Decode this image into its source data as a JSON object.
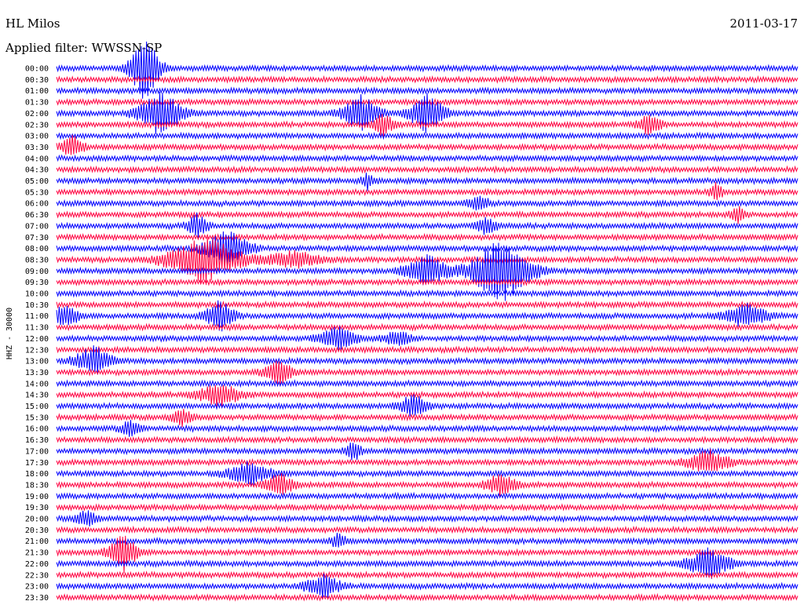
{
  "header": {
    "station": "HL Milos",
    "date": "2011-03-17",
    "filter": "Applied filter: WWSSN-SP"
  },
  "chart_data": {
    "type": "line",
    "title": "",
    "ylabel": "HHZ - 30000",
    "xlabel": "",
    "grid": false,
    "colors": [
      "#0000ff",
      "#ff0040"
    ],
    "rows": [
      "00:00",
      "00:30",
      "01:00",
      "01:30",
      "02:00",
      "02:30",
      "03:00",
      "03:30",
      "04:00",
      "04:30",
      "05:00",
      "05:30",
      "06:00",
      "06:30",
      "07:00",
      "07:30",
      "08:00",
      "08:30",
      "09:00",
      "09:30",
      "10:00",
      "10:30",
      "11:00",
      "11:30",
      "12:00",
      "12:30",
      "13:00",
      "13:30",
      "14:00",
      "14:30",
      "15:00",
      "15:30",
      "16:00",
      "16:30",
      "17:00",
      "17:30",
      "18:00",
      "18:30",
      "19:00",
      "19:30",
      "20:00",
      "20:30",
      "21:00",
      "21:30",
      "22:00",
      "22:30",
      "23:00",
      "23:30"
    ],
    "events": [
      {
        "row": 0,
        "x": 0.12,
        "amp": 9,
        "dur": 0.04
      },
      {
        "row": 4,
        "x": 0.14,
        "amp": 6,
        "dur": 0.06
      },
      {
        "row": 4,
        "x": 0.41,
        "amp": 5,
        "dur": 0.05
      },
      {
        "row": 4,
        "x": 0.5,
        "amp": 5,
        "dur": 0.05
      },
      {
        "row": 5,
        "x": 0.44,
        "amp": 3,
        "dur": 0.03
      },
      {
        "row": 5,
        "x": 0.8,
        "amp": 3,
        "dur": 0.03
      },
      {
        "row": 7,
        "x": 0.02,
        "amp": 3,
        "dur": 0.03
      },
      {
        "row": 10,
        "x": 0.42,
        "amp": 2,
        "dur": 0.02
      },
      {
        "row": 11,
        "x": 0.89,
        "amp": 2,
        "dur": 0.02
      },
      {
        "row": 12,
        "x": 0.57,
        "amp": 2,
        "dur": 0.03
      },
      {
        "row": 13,
        "x": 0.92,
        "amp": 2,
        "dur": 0.02
      },
      {
        "row": 14,
        "x": 0.19,
        "amp": 3,
        "dur": 0.03
      },
      {
        "row": 14,
        "x": 0.58,
        "amp": 2,
        "dur": 0.03
      },
      {
        "row": 16,
        "x": 0.23,
        "amp": 5,
        "dur": 0.06
      },
      {
        "row": 17,
        "x": 0.2,
        "amp": 6,
        "dur": 0.1
      },
      {
        "row": 17,
        "x": 0.32,
        "amp": 2,
        "dur": 0.08
      },
      {
        "row": 18,
        "x": 0.5,
        "amp": 4,
        "dur": 0.06
      },
      {
        "row": 18,
        "x": 0.6,
        "amp": 9,
        "dur": 0.08
      },
      {
        "row": 22,
        "x": 0.01,
        "amp": 3,
        "dur": 0.04
      },
      {
        "row": 22,
        "x": 0.22,
        "amp": 4,
        "dur": 0.04
      },
      {
        "row": 22,
        "x": 0.93,
        "amp": 3,
        "dur": 0.06
      },
      {
        "row": 24,
        "x": 0.38,
        "amp": 3,
        "dur": 0.05
      },
      {
        "row": 24,
        "x": 0.46,
        "amp": 2,
        "dur": 0.04
      },
      {
        "row": 26,
        "x": 0.05,
        "amp": 4,
        "dur": 0.05
      },
      {
        "row": 27,
        "x": 0.3,
        "amp": 3,
        "dur": 0.04
      },
      {
        "row": 29,
        "x": 0.22,
        "amp": 3,
        "dur": 0.06
      },
      {
        "row": 30,
        "x": 0.48,
        "amp": 3,
        "dur": 0.04
      },
      {
        "row": 31,
        "x": 0.17,
        "amp": 2,
        "dur": 0.03
      },
      {
        "row": 32,
        "x": 0.1,
        "amp": 2,
        "dur": 0.03
      },
      {
        "row": 34,
        "x": 0.4,
        "amp": 3,
        "dur": 0.02
      },
      {
        "row": 35,
        "x": 0.88,
        "amp": 3,
        "dur": 0.06
      },
      {
        "row": 36,
        "x": 0.26,
        "amp": 3,
        "dur": 0.06
      },
      {
        "row": 37,
        "x": 0.3,
        "amp": 3,
        "dur": 0.04
      },
      {
        "row": 37,
        "x": 0.6,
        "amp": 3,
        "dur": 0.04
      },
      {
        "row": 40,
        "x": 0.04,
        "amp": 2,
        "dur": 0.03
      },
      {
        "row": 42,
        "x": 0.38,
        "amp": 2,
        "dur": 0.02
      },
      {
        "row": 43,
        "x": 0.09,
        "amp": 5,
        "dur": 0.04
      },
      {
        "row": 44,
        "x": 0.88,
        "amp": 4,
        "dur": 0.06
      },
      {
        "row": 46,
        "x": 0.36,
        "amp": 3,
        "dur": 0.05
      }
    ]
  }
}
